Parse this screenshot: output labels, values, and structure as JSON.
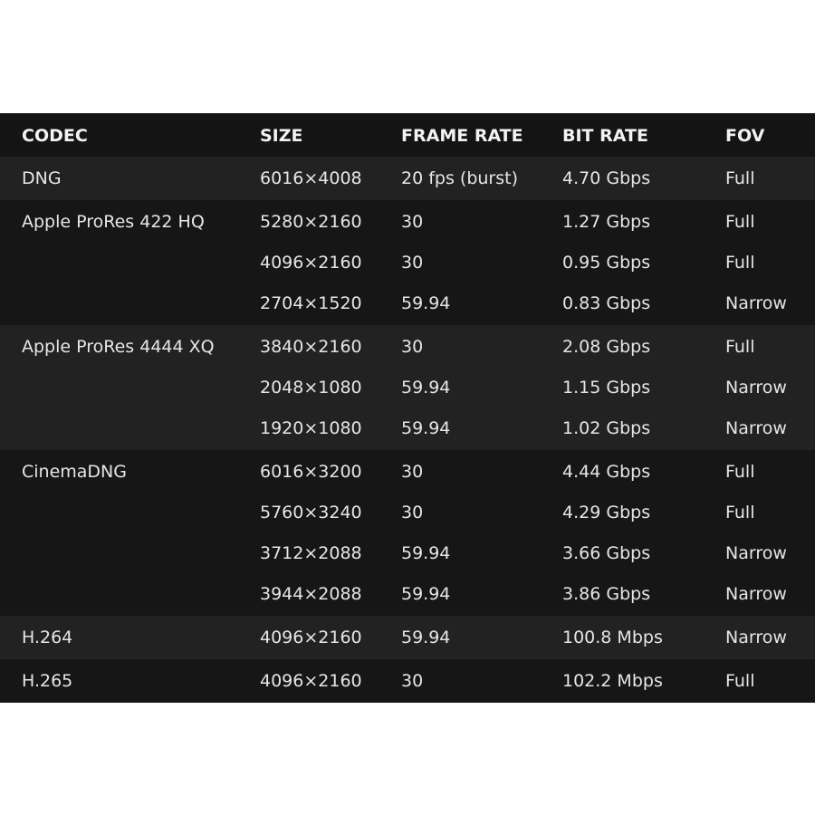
{
  "headers": [
    "CODEC",
    "SIZE",
    "FRAME RATE",
    "BIT RATE",
    "FOV"
  ],
  "groups": [
    {
      "codec": "DNG",
      "rows": [
        [
          "6016×4008",
          "20 fps (burst)",
          "4.70 Gbps",
          "Full"
        ]
      ]
    },
    {
      "codec": "Apple ProRes 422 HQ",
      "rows": [
        [
          "5280×2160",
          "30",
          "1.27 Gbps",
          "Full"
        ],
        [
          "4096×2160",
          "30",
          "0.95 Gbps",
          "Full"
        ],
        [
          "2704×1520",
          "59.94",
          "0.83 Gbps",
          "Narrow"
        ]
      ]
    },
    {
      "codec": "Apple ProRes 4444 XQ",
      "rows": [
        [
          "3840×2160",
          "30",
          "2.08 Gbps",
          "Full"
        ],
        [
          "2048×1080",
          "59.94",
          "1.15 Gbps",
          "Narrow"
        ],
        [
          "1920×1080",
          "59.94",
          "1.02 Gbps",
          "Narrow"
        ]
      ]
    },
    {
      "codec": "CinemaDNG",
      "rows": [
        [
          "6016×3200",
          "30",
          "4.44 Gbps",
          "Full"
        ],
        [
          "5760×3240",
          "30",
          "4.29 Gbps",
          "Full"
        ],
        [
          "3712×2088",
          "59.94",
          "3.66 Gbps",
          "Narrow"
        ],
        [
          "3944×2088",
          "59.94",
          "3.86 Gbps",
          "Narrow"
        ]
      ]
    },
    {
      "codec": "H.264",
      "rows": [
        [
          "4096×2160",
          "59.94",
          "100.8 Mbps",
          "Narrow"
        ]
      ]
    },
    {
      "codec": "H.265",
      "rows": [
        [
          "4096×2160",
          "30",
          "102.2 Mbps",
          "Full"
        ]
      ]
    }
  ],
  "colors": {
    "header_bg": "#141414",
    "row_light": "#222222",
    "row_dark": "#161616",
    "text": "#e6e6e6"
  }
}
